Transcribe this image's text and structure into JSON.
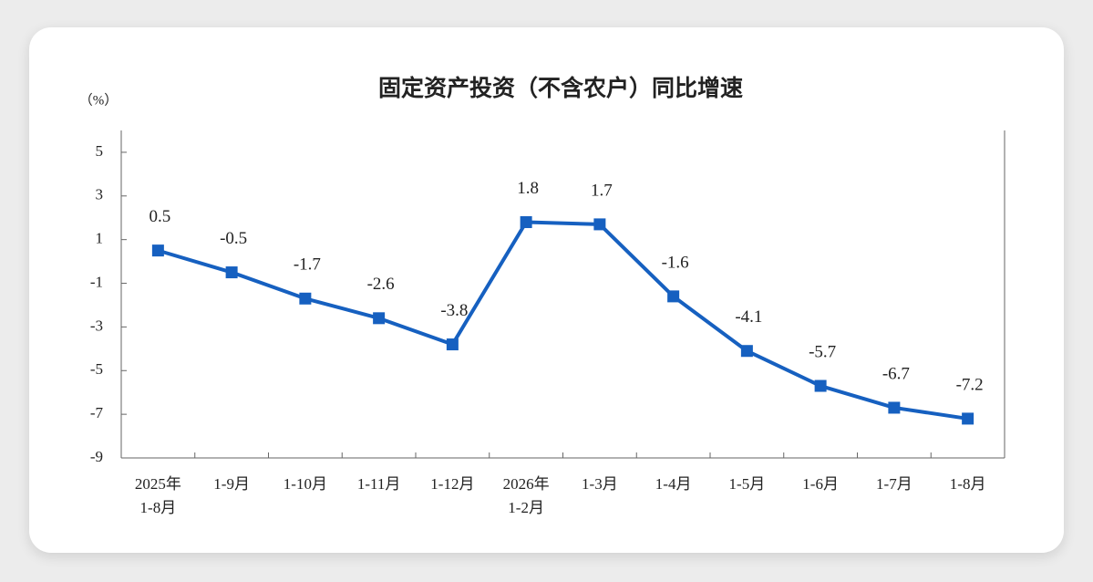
{
  "chart_data": {
    "type": "line",
    "title": "固定资产投资（不含农户）同比增速",
    "y_label": "（%）",
    "categories": [
      [
        "2025年",
        "1-8月"
      ],
      "1-9月",
      "1-10月",
      "1-11月",
      "1-12月",
      [
        "2026年",
        "1-2月"
      ],
      "1-3月",
      "1-4月",
      "1-5月",
      "1-6月",
      "1-7月",
      "1-8月"
    ],
    "values": [
      0.5,
      -0.5,
      -1.7,
      -2.6,
      -3.8,
      1.8,
      1.7,
      -1.6,
      -4.1,
      -5.7,
      -6.7,
      -7.2
    ],
    "color": "#1660c0",
    "ylim": [
      -9,
      6
    ],
    "yticks": [
      5,
      3,
      1,
      -1,
      -3,
      -5,
      -7,
      -9
    ]
  }
}
